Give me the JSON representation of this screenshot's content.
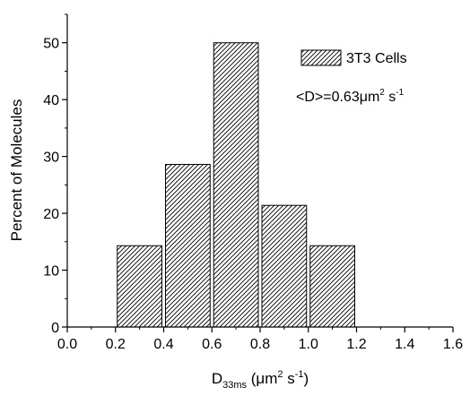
{
  "chart_data": {
    "type": "bar",
    "title": "",
    "ylabel": "Percent of Molecules",
    "xlabel": {
      "main": "D",
      "subscript": "33ms",
      "unit_open": "(",
      "unit_mu": "μ",
      "unit_m": "m",
      "unit_m_exp": "2",
      "unit_s": "s",
      "unit_s_exp": "-1",
      "unit_close": ")"
    },
    "xlim": [
      0.0,
      1.6
    ],
    "ylim": [
      0,
      55
    ],
    "x_ticks": [
      "0.0",
      "0.2",
      "0.4",
      "0.6",
      "0.8",
      "1.0",
      "1.2",
      "1.4",
      "1.6"
    ],
    "y_ticks": [
      "0",
      "10",
      "20",
      "30",
      "40",
      "50"
    ],
    "series": [
      {
        "name": "3T3 Cells",
        "bins": [
          {
            "x0": 0.2,
            "x1": 0.4,
            "value": 14.3
          },
          {
            "x0": 0.4,
            "x1": 0.6,
            "value": 28.6
          },
          {
            "x0": 0.6,
            "x1": 0.8,
            "value": 50.0
          },
          {
            "x0": 0.8,
            "x1": 1.0,
            "value": 21.4
          },
          {
            "x0": 1.0,
            "x1": 1.2,
            "value": 14.3
          }
        ]
      }
    ],
    "legend": {
      "position": "top-right",
      "label": "3T3 Cells"
    },
    "annotation": {
      "prefix": "<D>=0.63",
      "mu": "μ",
      "m": "m",
      "m_exp": "2",
      "s": "s",
      "s_exp": "-1"
    },
    "fill_pattern": "diagonal-hatch",
    "bar_color": "#000000"
  }
}
